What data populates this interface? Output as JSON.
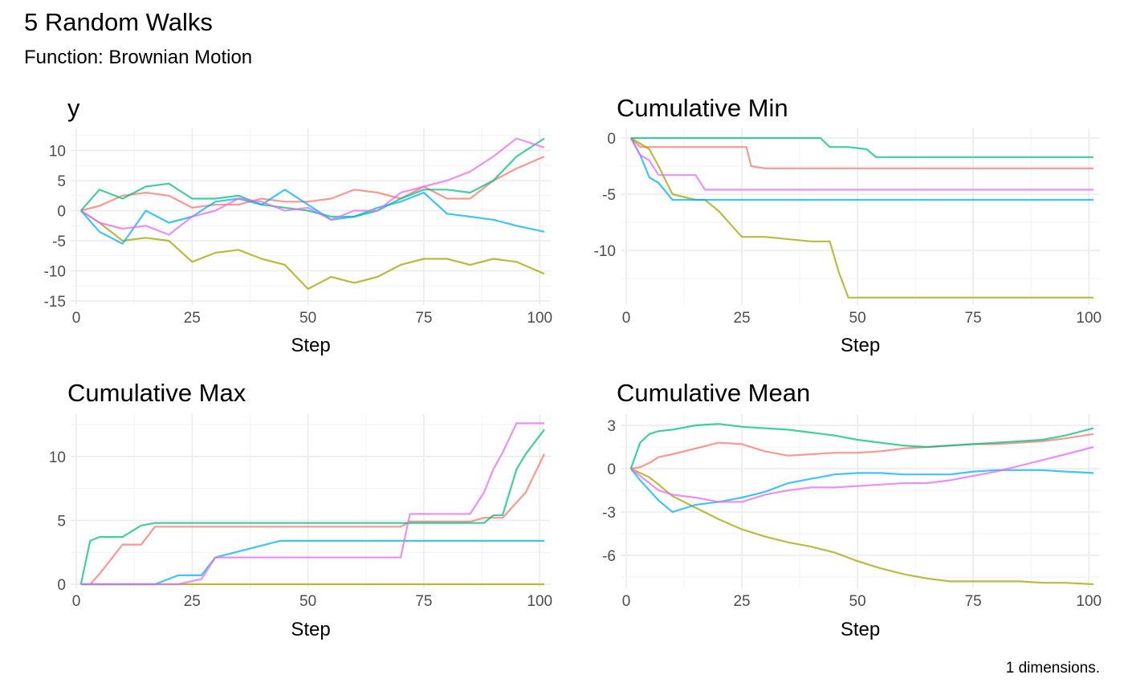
{
  "title": "5 Random Walks",
  "subtitle": "Function: Brownian Motion",
  "caption": "1 dimensions.",
  "colors": {
    "walk1": "#F8766D",
    "walk2": "#A3A500",
    "walk3": "#00BF7D",
    "walk4": "#00B0F6",
    "walk5": "#E76BF3"
  },
  "chart_data": [
    {
      "type": "line",
      "title": "y",
      "xlabel": "Step",
      "ylabel": "",
      "xlim": [
        0,
        101
      ],
      "ylim": [
        -15,
        13
      ],
      "xticks": [
        0,
        25,
        50,
        75,
        100
      ],
      "yticks": [
        -15,
        -10,
        -5,
        0,
        5,
        10
      ],
      "yticklabels": [
        "-15",
        "-10",
        "-5",
        "0",
        "5",
        "10"
      ],
      "grid": true,
      "x": [
        1,
        5,
        10,
        15,
        20,
        25,
        30,
        35,
        40,
        45,
        50,
        55,
        60,
        65,
        70,
        75,
        80,
        85,
        90,
        95,
        101
      ],
      "series": [
        {
          "color": "#F8766D",
          "values": [
            0,
            0.8,
            2.5,
            3.0,
            2.5,
            0.5,
            1.0,
            1.0,
            2.0,
            1.5,
            1.5,
            2.0,
            3.5,
            3.0,
            2.0,
            4.0,
            2.0,
            2.0,
            5.0,
            7.0,
            9.0
          ]
        },
        {
          "color": "#A3A500",
          "values": [
            0,
            -2.0,
            -5.0,
            -4.5,
            -5.0,
            -8.5,
            -7.0,
            -6.5,
            -8.0,
            -9.0,
            -13.0,
            -11.0,
            -12.0,
            -11.0,
            -9.0,
            -8.0,
            -8.0,
            -9.0,
            -8.0,
            -8.5,
            -10.5
          ]
        },
        {
          "color": "#00BF7D",
          "values": [
            0,
            3.5,
            2.0,
            4.0,
            4.5,
            2.0,
            2.0,
            2.5,
            1.0,
            0.5,
            0,
            -1.0,
            -1.0,
            0,
            2.0,
            3.5,
            3.5,
            3.0,
            5.0,
            9.0,
            12.0
          ]
        },
        {
          "color": "#00B0F6",
          "values": [
            0,
            -3.5,
            -5.5,
            0,
            -2.0,
            -1.0,
            1.5,
            2.0,
            1.0,
            3.5,
            1.0,
            -1.5,
            -1.0,
            0.5,
            1.5,
            3.0,
            -0.5,
            -1.0,
            -1.5,
            -2.5,
            -3.5
          ]
        },
        {
          "color": "#E76BF3",
          "values": [
            0,
            -2.0,
            -3.0,
            -2.5,
            -4.0,
            -1.0,
            0,
            2.0,
            1.5,
            0,
            0.5,
            -1.5,
            0,
            0,
            3.0,
            4.0,
            5.0,
            6.5,
            9.0,
            12.0,
            10.5
          ]
        }
      ]
    },
    {
      "type": "line",
      "title": "Cumulative Min",
      "xlabel": "Step",
      "ylabel": "",
      "xlim": [
        0,
        101
      ],
      "ylim": [
        -14.5,
        0.5
      ],
      "xticks": [
        0,
        25,
        50,
        75,
        100
      ],
      "yticks": [
        -10,
        -5,
        0
      ],
      "yticklabels": [
        "-10",
        "-5",
        "0"
      ],
      "grid": true,
      "x": [
        1,
        3,
        5,
        7,
        10,
        15,
        17,
        20,
        25,
        26,
        27,
        30,
        40,
        42,
        44,
        46,
        48,
        52,
        54,
        60,
        101
      ],
      "series": [
        {
          "color": "#F8766D",
          "values": [
            0,
            -0.8,
            -0.8,
            -0.8,
            -0.8,
            -0.8,
            -0.8,
            -0.8,
            -0.8,
            -0.8,
            -2.5,
            -2.7,
            -2.7,
            -2.7,
            -2.7,
            -2.7,
            -2.7,
            -2.7,
            -2.7,
            -2.7,
            -2.7
          ]
        },
        {
          "color": "#A3A500",
          "values": [
            0,
            -0.5,
            -1.0,
            -2.5,
            -5.0,
            -5.5,
            -5.5,
            -6.5,
            -8.8,
            -8.8,
            -8.8,
            -8.8,
            -9.2,
            -9.2,
            -9.2,
            -12.0,
            -14.2,
            -14.2,
            -14.2,
            -14.2,
            -14.2
          ]
        },
        {
          "color": "#00BF7D",
          "values": [
            0,
            0,
            0,
            0,
            0,
            0,
            0,
            0,
            0,
            0,
            0,
            0,
            0,
            0,
            -0.8,
            -0.8,
            -0.8,
            -1.0,
            -1.7,
            -1.7,
            -1.7
          ]
        },
        {
          "color": "#00B0F6",
          "values": [
            0,
            -1.5,
            -3.5,
            -4.0,
            -5.5,
            -5.5,
            -5.5,
            -5.5,
            -5.5,
            -5.5,
            -5.5,
            -5.5,
            -5.5,
            -5.5,
            -5.5,
            -5.5,
            -5.5,
            -5.5,
            -5.5,
            -5.5,
            -5.5
          ]
        },
        {
          "color": "#E76BF3",
          "values": [
            0,
            -1.5,
            -2.0,
            -3.3,
            -3.3,
            -3.3,
            -4.6,
            -4.6,
            -4.6,
            -4.6,
            -4.6,
            -4.6,
            -4.6,
            -4.6,
            -4.6,
            -4.6,
            -4.6,
            -4.6,
            -4.6,
            -4.6,
            -4.6
          ]
        }
      ]
    },
    {
      "type": "line",
      "title": "Cumulative Max",
      "xlabel": "Step",
      "ylabel": "",
      "xlim": [
        0,
        101
      ],
      "ylim": [
        0,
        13
      ],
      "xticks": [
        0,
        25,
        50,
        75,
        100
      ],
      "yticks": [
        0,
        5,
        10
      ],
      "yticklabels": [
        "0",
        "5",
        "10"
      ],
      "grid": true,
      "x": [
        1,
        3,
        5,
        10,
        14,
        17,
        22,
        27,
        30,
        44,
        70,
        72,
        85,
        88,
        90,
        92,
        95,
        97,
        101
      ],
      "series": [
        {
          "color": "#F8766D",
          "values": [
            0,
            0,
            0.8,
            3.1,
            3.1,
            4.5,
            4.5,
            4.5,
            4.5,
            4.5,
            4.5,
            4.9,
            4.9,
            5.2,
            5.2,
            5.2,
            6.4,
            7.2,
            10.2
          ]
        },
        {
          "color": "#A3A500",
          "values": [
            0,
            0,
            0,
            0,
            0,
            0,
            0,
            0,
            0,
            0,
            0,
            0,
            0,
            0,
            0,
            0,
            0,
            0,
            0
          ]
        },
        {
          "color": "#00BF7D",
          "values": [
            0,
            3.4,
            3.7,
            3.7,
            4.6,
            4.8,
            4.8,
            4.8,
            4.8,
            4.8,
            4.8,
            4.8,
            4.8,
            4.8,
            5.4,
            5.4,
            9.0,
            10.2,
            12.1
          ]
        },
        {
          "color": "#00B0F6",
          "values": [
            0,
            0,
            0,
            0,
            0,
            0,
            0.7,
            0.7,
            2.1,
            3.4,
            3.4,
            3.4,
            3.4,
            3.4,
            3.4,
            3.4,
            3.4,
            3.4,
            3.4
          ]
        },
        {
          "color": "#E76BF3",
          "values": [
            0,
            0,
            0,
            0,
            0,
            0,
            0,
            0.4,
            2.1,
            2.1,
            2.1,
            5.5,
            5.5,
            7.2,
            9.0,
            10.3,
            12.6,
            12.6,
            12.6
          ]
        }
      ]
    },
    {
      "type": "line",
      "title": "Cumulative Mean",
      "xlabel": "Step",
      "ylabel": "",
      "xlim": [
        0,
        101
      ],
      "ylim": [
        -8,
        3.5
      ],
      "xticks": [
        0,
        25,
        50,
        75,
        100
      ],
      "yticks": [
        -6,
        -3,
        0,
        3
      ],
      "yticklabels": [
        "-6",
        "-3",
        "0",
        "3"
      ],
      "grid": true,
      "x": [
        1,
        3,
        5,
        7,
        10,
        15,
        20,
        25,
        30,
        35,
        40,
        45,
        50,
        55,
        60,
        65,
        70,
        75,
        80,
        85,
        90,
        95,
        101
      ],
      "series": [
        {
          "color": "#F8766D",
          "values": [
            0,
            0.1,
            0.4,
            0.8,
            1.0,
            1.4,
            1.8,
            1.7,
            1.2,
            0.9,
            1.0,
            1.1,
            1.1,
            1.2,
            1.4,
            1.5,
            1.6,
            1.7,
            1.7,
            1.8,
            1.9,
            2.1,
            2.4
          ]
        },
        {
          "color": "#A3A500",
          "values": [
            0,
            -0.3,
            -0.6,
            -1.1,
            -1.9,
            -2.7,
            -3.5,
            -4.2,
            -4.7,
            -5.1,
            -5.4,
            -5.8,
            -6.4,
            -6.9,
            -7.3,
            -7.6,
            -7.8,
            -7.8,
            -7.8,
            -7.8,
            -7.9,
            -7.9,
            -8.0
          ]
        },
        {
          "color": "#00BF7D",
          "values": [
            0,
            1.8,
            2.4,
            2.6,
            2.7,
            3.0,
            3.1,
            2.9,
            2.8,
            2.7,
            2.5,
            2.3,
            2.0,
            1.8,
            1.6,
            1.5,
            1.6,
            1.7,
            1.8,
            1.9,
            2.0,
            2.3,
            2.8
          ]
        },
        {
          "color": "#00B0F6",
          "values": [
            0,
            -0.8,
            -1.5,
            -2.2,
            -3.0,
            -2.5,
            -2.3,
            -2.0,
            -1.6,
            -1.0,
            -0.7,
            -0.4,
            -0.3,
            -0.3,
            -0.4,
            -0.4,
            -0.4,
            -0.2,
            -0.1,
            -0.1,
            -0.1,
            -0.2,
            -0.3
          ]
        },
        {
          "color": "#E76BF3",
          "values": [
            0,
            -0.5,
            -1.0,
            -1.5,
            -1.8,
            -2.0,
            -2.3,
            -2.3,
            -1.8,
            -1.5,
            -1.3,
            -1.3,
            -1.2,
            -1.1,
            -1.0,
            -1.0,
            -0.8,
            -0.5,
            -0.2,
            0.2,
            0.6,
            1.0,
            1.5
          ]
        }
      ]
    }
  ]
}
